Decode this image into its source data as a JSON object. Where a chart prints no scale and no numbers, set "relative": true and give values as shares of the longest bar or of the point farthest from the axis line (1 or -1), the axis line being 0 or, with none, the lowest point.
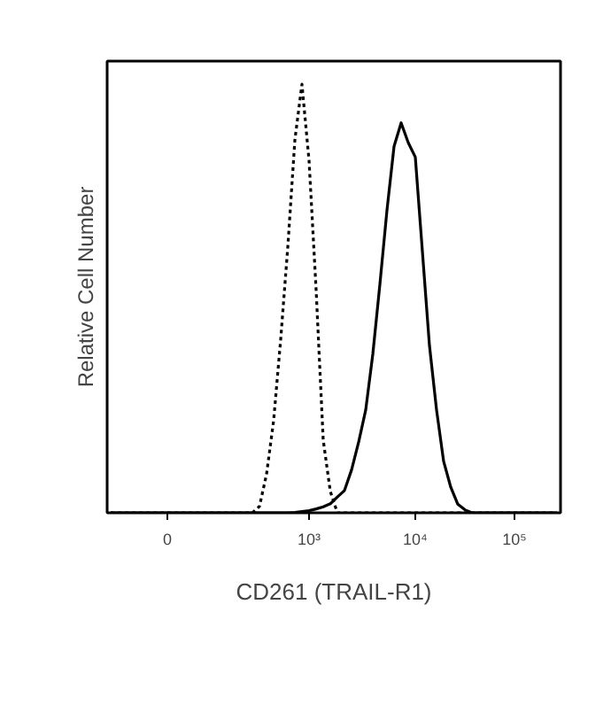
{
  "chart_data": {
    "type": "line",
    "relative": true,
    "xlabel": "CD261 (TRAIL-R1)",
    "ylabel": "Relative Cell Number",
    "categories": [
      null,
      null,
      null,
      null,
      null,
      null,
      null,
      null,
      "0",
      null,
      null,
      null,
      null,
      null,
      null,
      null,
      null,
      null,
      null,
      null,
      null,
      null,
      null,
      null,
      null,
      null,
      null,
      null,
      "10³",
      null,
      null,
      null,
      null,
      null,
      null,
      null,
      null,
      null,
      null,
      null,
      null,
      null,
      null,
      "10⁴",
      null,
      null,
      null,
      null,
      null,
      null,
      null,
      null,
      null,
      null,
      null,
      null,
      null,
      "10⁵",
      null,
      null,
      null,
      null,
      null,
      null
    ],
    "series": [
      {
        "color": "#000000",
        "line_style": "dotted",
        "values": [
          0,
          0,
          0,
          0,
          0,
          0,
          0,
          0,
          0,
          0,
          0,
          0,
          0,
          0,
          0,
          0,
          0,
          0,
          0,
          0,
          0,
          0.015,
          0.09,
          0.215,
          0.405,
          0.62,
          0.87,
          1,
          0.822,
          0.52,
          0.17,
          0.05,
          0,
          0,
          0,
          0,
          0,
          0,
          0,
          0,
          0,
          0,
          0,
          0,
          0,
          0,
          0,
          0,
          0,
          0,
          0,
          0,
          0,
          0,
          0,
          0,
          0,
          0,
          0,
          0,
          0,
          0,
          0,
          0
        ]
      },
      {
        "color": "#000000",
        "line_style": "solid",
        "values": [
          0,
          0,
          0,
          0,
          0,
          0,
          0,
          0,
          0,
          0,
          0,
          0,
          0,
          0,
          0,
          0,
          0,
          0,
          0,
          0,
          0,
          0,
          0,
          0,
          0,
          0,
          0.001,
          0.003,
          0.005,
          0.009,
          0.014,
          0.021,
          0.037,
          0.052,
          0.1,
          0.165,
          0.24,
          0.37,
          0.533,
          0.706,
          0.855,
          0.91,
          0.864,
          0.83,
          0.61,
          0.39,
          0.24,
          0.12,
          0.06,
          0.02,
          0.007,
          0,
          0,
          0,
          0,
          0,
          0,
          0,
          0,
          0,
          0,
          0,
          0,
          0
        ]
      }
    ]
  }
}
